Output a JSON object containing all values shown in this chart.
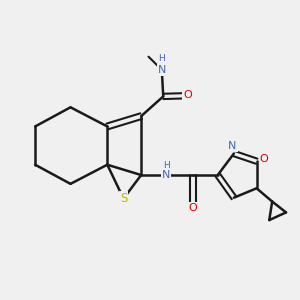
{
  "bg_color": "#f0f0f0",
  "bond_color": "#1a1a1a",
  "atom_colors": {
    "N": "#4169b0",
    "O": "#dd0000",
    "S": "#bbbb00",
    "C": "#1a1a1a",
    "H": "#4169b0"
  }
}
